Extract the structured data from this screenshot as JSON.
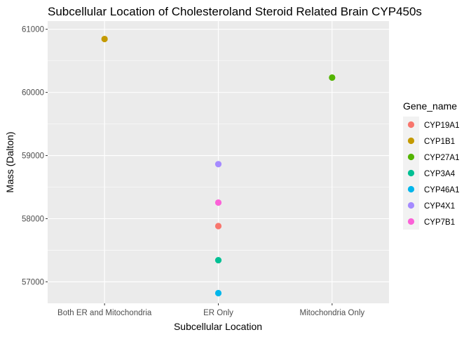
{
  "chart_data": {
    "type": "scatter",
    "title": "Subcellular Location of Cholesteroland Steroid Related Brain CYP450s",
    "xlabel": "Subcellular Location",
    "ylabel": "Mass (Dalton)",
    "categories": [
      "Both ER and Mitochondria",
      "ER Only",
      "Mitochondria Only"
    ],
    "ylim": [
      56660,
      61130
    ],
    "yticks": [
      57000,
      58000,
      59000,
      60000,
      61000
    ],
    "grid": true,
    "legend": {
      "title": "Gene_name",
      "position": "right",
      "entries": [
        "CYP19A1",
        "CYP1B1",
        "CYP27A1",
        "CYP3A4",
        "CYP46A1",
        "CYP4X1",
        "CYP7B1"
      ]
    },
    "colors": {
      "CYP19A1": "#F8766D",
      "CYP1B1": "#C49A00",
      "CYP27A1": "#53B400",
      "CYP3A4": "#00C094",
      "CYP46A1": "#00B6EB",
      "CYP4X1": "#A58AFF",
      "CYP7B1": "#FB61D7"
    },
    "points": [
      {
        "gene": "CYP1B1",
        "x": "Both ER and Mitochondria",
        "y": 60846
      },
      {
        "gene": "CYP27A1",
        "x": "Mitochondria Only",
        "y": 60235
      },
      {
        "gene": "CYP4X1",
        "x": "ER Only",
        "y": 58864
      },
      {
        "gene": "CYP7B1",
        "x": "ER Only",
        "y": 58255
      },
      {
        "gene": "CYP19A1",
        "x": "ER Only",
        "y": 57883
      },
      {
        "gene": "CYP3A4",
        "x": "ER Only",
        "y": 57343
      },
      {
        "gene": "CYP46A1",
        "x": "ER Only",
        "y": 56821
      }
    ]
  }
}
